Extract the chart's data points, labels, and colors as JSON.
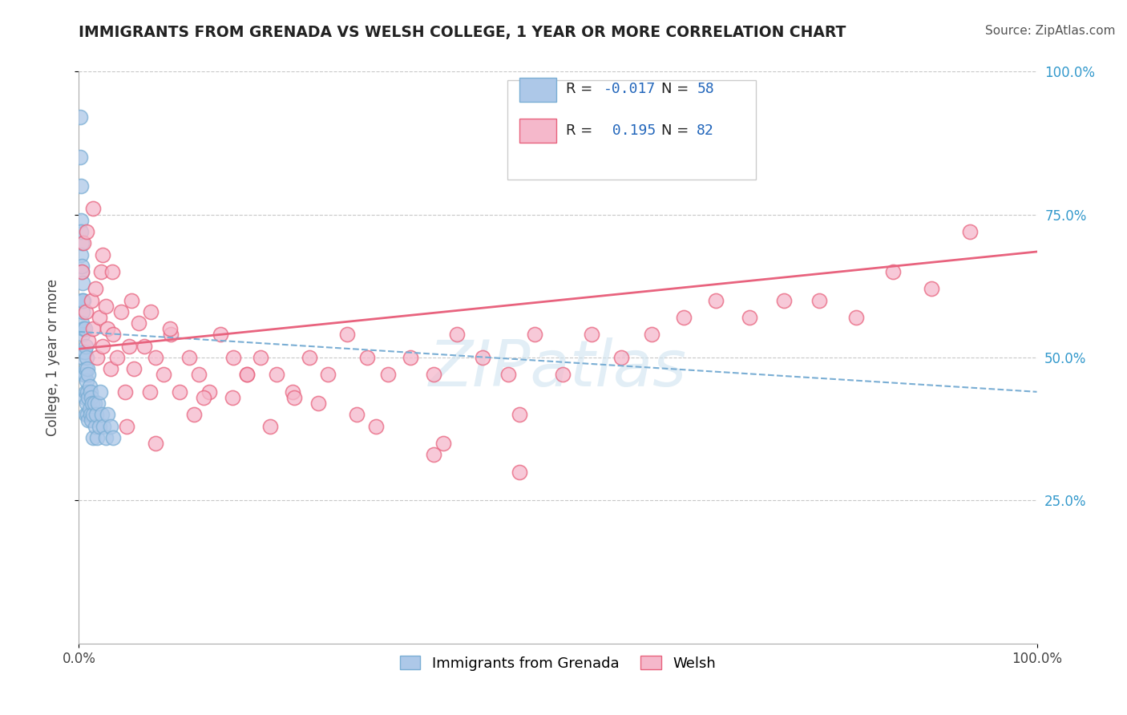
{
  "title": "IMMIGRANTS FROM GRENADA VS WELSH COLLEGE, 1 YEAR OR MORE CORRELATION CHART",
  "source_text": "Source: ZipAtlas.com",
  "ylabel": "College, 1 year or more",
  "xlim": [
    0.0,
    1.0
  ],
  "ylim": [
    0.0,
    1.0
  ],
  "ytick_labels_right": [
    "25.0%",
    "50.0%",
    "75.0%",
    "100.0%"
  ],
  "ytick_positions_right": [
    0.25,
    0.5,
    0.75,
    1.0
  ],
  "color_blue": "#adc8e8",
  "color_pink": "#f5b8cb",
  "color_blue_line": "#7aaed4",
  "color_pink_line": "#e8637e",
  "watermark": "ZIPatlas",
  "background_color": "#ffffff",
  "grid_color": "#c8c8c8",
  "blue_trendline": [
    0.545,
    0.44
  ],
  "pink_trendline": [
    0.515,
    0.685
  ],
  "blue_dots_x": [
    0.001,
    0.001,
    0.002,
    0.002,
    0.002,
    0.003,
    0.003,
    0.003,
    0.003,
    0.004,
    0.004,
    0.004,
    0.004,
    0.005,
    0.005,
    0.005,
    0.005,
    0.006,
    0.006,
    0.006,
    0.006,
    0.007,
    0.007,
    0.007,
    0.007,
    0.008,
    0.008,
    0.008,
    0.009,
    0.009,
    0.009,
    0.01,
    0.01,
    0.01,
    0.011,
    0.011,
    0.012,
    0.012,
    0.013,
    0.013,
    0.014,
    0.015,
    0.015,
    0.016,
    0.017,
    0.018,
    0.019,
    0.02,
    0.021,
    0.022,
    0.024,
    0.026,
    0.028,
    0.03,
    0.033,
    0.036,
    0.002,
    0.003,
    0.004
  ],
  "blue_dots_y": [
    0.92,
    0.85,
    0.8,
    0.74,
    0.68,
    0.7,
    0.65,
    0.6,
    0.56,
    0.63,
    0.58,
    0.54,
    0.5,
    0.6,
    0.55,
    0.51,
    0.47,
    0.55,
    0.51,
    0.47,
    0.43,
    0.52,
    0.48,
    0.44,
    0.4,
    0.5,
    0.46,
    0.42,
    0.48,
    0.44,
    0.4,
    0.47,
    0.43,
    0.39,
    0.45,
    0.41,
    0.44,
    0.4,
    0.43,
    0.39,
    0.42,
    0.4,
    0.36,
    0.42,
    0.38,
    0.4,
    0.36,
    0.42,
    0.38,
    0.44,
    0.4,
    0.38,
    0.36,
    0.4,
    0.38,
    0.36,
    0.72,
    0.66,
    0.6
  ],
  "pink_dots_x": [
    0.003,
    0.005,
    0.007,
    0.008,
    0.01,
    0.013,
    0.015,
    0.017,
    0.019,
    0.021,
    0.023,
    0.025,
    0.028,
    0.03,
    0.033,
    0.036,
    0.04,
    0.044,
    0.048,
    0.052,
    0.057,
    0.062,
    0.068,
    0.074,
    0.08,
    0.088,
    0.096,
    0.105,
    0.115,
    0.125,
    0.136,
    0.148,
    0.161,
    0.175,
    0.19,
    0.206,
    0.223,
    0.241,
    0.26,
    0.28,
    0.301,
    0.323,
    0.346,
    0.37,
    0.395,
    0.421,
    0.448,
    0.476,
    0.505,
    0.535,
    0.566,
    0.598,
    0.631,
    0.665,
    0.7,
    0.736,
    0.773,
    0.811,
    0.85,
    0.89,
    0.93,
    0.05,
    0.08,
    0.12,
    0.16,
    0.2,
    0.25,
    0.31,
    0.38,
    0.46,
    0.015,
    0.025,
    0.035,
    0.055,
    0.075,
    0.095,
    0.13,
    0.175,
    0.225,
    0.29,
    0.37,
    0.46
  ],
  "pink_dots_y": [
    0.65,
    0.7,
    0.58,
    0.72,
    0.53,
    0.6,
    0.55,
    0.62,
    0.5,
    0.57,
    0.65,
    0.52,
    0.59,
    0.55,
    0.48,
    0.54,
    0.5,
    0.58,
    0.44,
    0.52,
    0.48,
    0.56,
    0.52,
    0.44,
    0.5,
    0.47,
    0.54,
    0.44,
    0.5,
    0.47,
    0.44,
    0.54,
    0.5,
    0.47,
    0.5,
    0.47,
    0.44,
    0.5,
    0.47,
    0.54,
    0.5,
    0.47,
    0.5,
    0.47,
    0.54,
    0.5,
    0.47,
    0.54,
    0.47,
    0.54,
    0.5,
    0.54,
    0.57,
    0.6,
    0.57,
    0.6,
    0.6,
    0.57,
    0.65,
    0.62,
    0.72,
    0.38,
    0.35,
    0.4,
    0.43,
    0.38,
    0.42,
    0.38,
    0.35,
    0.4,
    0.76,
    0.68,
    0.65,
    0.6,
    0.58,
    0.55,
    0.43,
    0.47,
    0.43,
    0.4,
    0.33,
    0.3
  ]
}
